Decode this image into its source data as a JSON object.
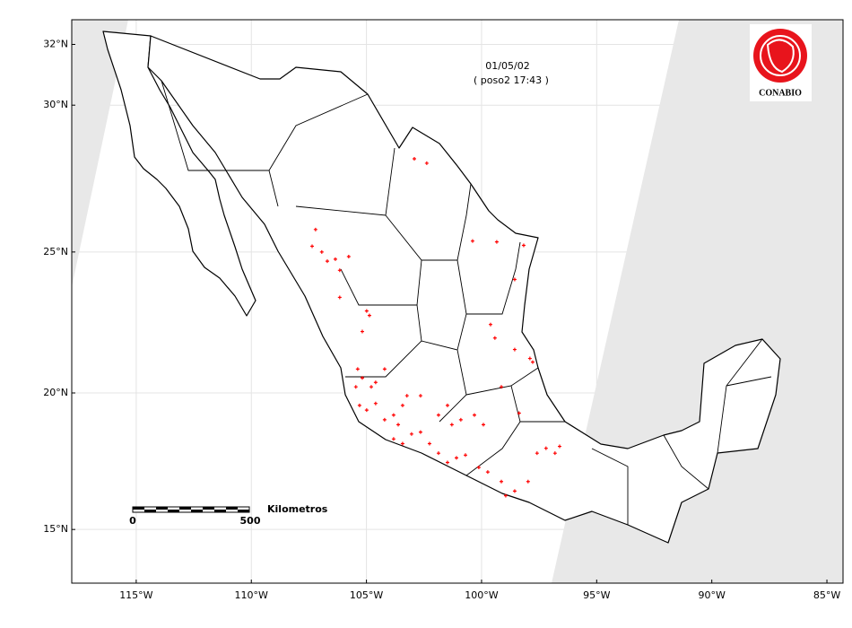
{
  "date": "01/05/02",
  "pass": "( poso2 17:43 )",
  "scale_bar": {
    "start": "0",
    "end": "500",
    "unit": "Kilometros"
  },
  "logo": "CONABIO",
  "xlim": [
    -117.8,
    -84.3
  ],
  "ylim": [
    13,
    32.8
  ],
  "xticks": [
    {
      "value": -115,
      "label": "115°W"
    },
    {
      "value": -110,
      "label": "110°W"
    },
    {
      "value": -105,
      "label": "105°W"
    },
    {
      "value": -100,
      "label": "100°W"
    },
    {
      "value": -95,
      "label": "95°W"
    },
    {
      "value": -90,
      "label": "90°W"
    },
    {
      "value": -85,
      "label": "85°W"
    }
  ],
  "yticks": [
    {
      "value": 15,
      "label": "15°N"
    },
    {
      "value": 20,
      "label": "20°N"
    },
    {
      "value": 25,
      "label": "25°N"
    },
    {
      "value": 30,
      "label": "30°N"
    },
    {
      "value": 32,
      "label": "32°N"
    }
  ],
  "fire_color": "#ff0000",
  "fires": {
    "lon": [
      -102.92,
      -102.38,
      -107.21,
      -107.36,
      -106.94,
      -106.7,
      -106.35,
      -106.16,
      -105.77,
      -100.39,
      -99.34,
      -98.17,
      -98.56,
      -106.16,
      -104.99,
      -104.87,
      -105.18,
      -99.61,
      -99.42,
      -98.56,
      -97.9,
      -97.78,
      -105.38,
      -105.18,
      -104.79,
      -105.46,
      -104.6,
      -104.21,
      -105.3,
      -104.99,
      -104.6,
      -104.21,
      -103.82,
      -103.43,
      -103.24,
      -103.62,
      -103.82,
      -103.43,
      -103.04,
      -102.65,
      -102.26,
      -101.87,
      -101.48,
      -101.09,
      -100.7,
      -101.29,
      -100.9,
      -100.31,
      -99.92,
      -100.12,
      -99.73,
      -99.14,
      -98.95,
      -98.56,
      -97.98,
      -97.59,
      -97.2,
      -96.81,
      -96.61,
      -98.37,
      -99.14,
      -102.65,
      -101.87,
      -101.48
    ],
    "lat": [
      28.2,
      28.05,
      25.78,
      25.2,
      25.0,
      24.68,
      24.75,
      24.36,
      24.84,
      25.38,
      25.35,
      25.23,
      24.04,
      23.41,
      22.93,
      22.77,
      22.2,
      22.45,
      21.97,
      21.56,
      21.24,
      21.11,
      20.86,
      20.54,
      20.22,
      20.22,
      20.38,
      20.86,
      19.55,
      19.38,
      19.62,
      19.03,
      19.2,
      19.55,
      19.9,
      18.85,
      18.33,
      18.16,
      18.51,
      18.58,
      18.16,
      17.81,
      17.47,
      17.64,
      17.74,
      18.85,
      19.03,
      19.2,
      18.85,
      17.29,
      17.12,
      16.77,
      16.25,
      16.42,
      16.77,
      17.81,
      17.99,
      17.81,
      18.06,
      19.27,
      20.22,
      19.9,
      19.2,
      19.55
    ]
  }
}
